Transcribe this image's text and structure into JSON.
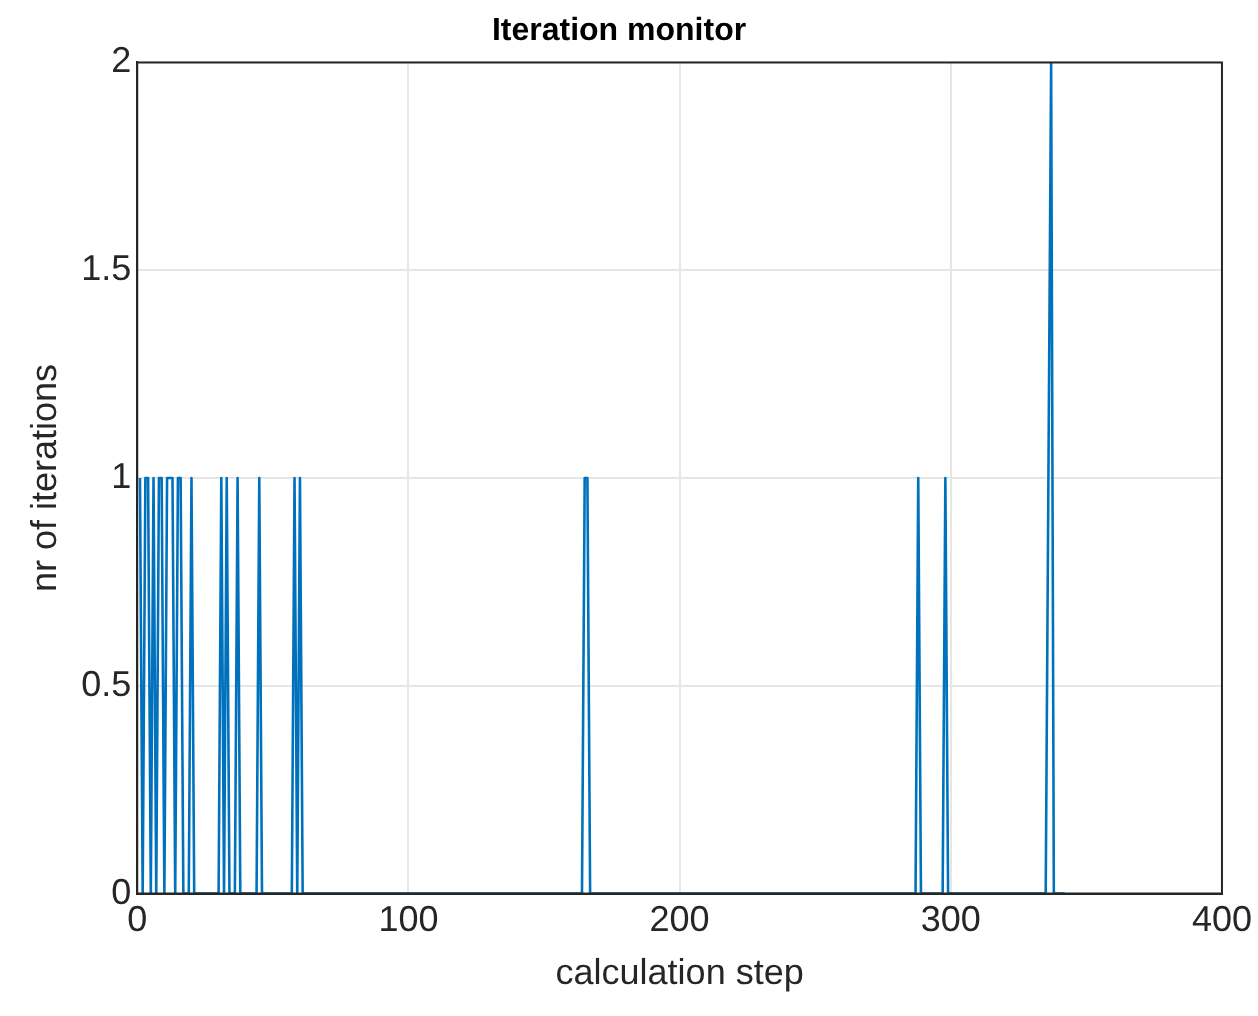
{
  "chart_data": {
    "type": "line",
    "title": "Iteration monitor",
    "xlabel": "calculation step",
    "ylabel": "nr of iterations",
    "series": [
      {
        "color": "#0072bd",
        "x": [
          1,
          2,
          3,
          4,
          5,
          6,
          7,
          8,
          9,
          10,
          11,
          12,
          13,
          14,
          15,
          16,
          17,
          19,
          20,
          21,
          30,
          31,
          32,
          33,
          34,
          36,
          37,
          38,
          44,
          45,
          46,
          57,
          58,
          59,
          60,
          61,
          164,
          165,
          166,
          167,
          287,
          288,
          289,
          297,
          298,
          299,
          335,
          336,
          337,
          338,
          342
        ],
        "values": [
          1,
          0,
          1,
          1,
          0,
          1,
          0,
          1,
          1,
          0,
          1,
          1,
          1,
          0,
          1,
          1,
          0,
          0,
          1,
          0,
          0,
          1,
          0,
          1,
          0,
          0,
          1,
          0,
          0,
          1,
          0,
          0,
          1,
          0,
          1,
          0,
          0,
          1,
          1,
          0,
          0,
          1,
          0,
          0,
          1,
          0,
          0,
          1,
          2,
          0,
          0
        ]
      }
    ],
    "xlim": [
      0,
      400
    ],
    "xticks": [
      0,
      100,
      200,
      300,
      400
    ],
    "ylim": [
      0,
      2
    ],
    "yticks": [
      0,
      0.5,
      1,
      1.5,
      2
    ],
    "grid": true,
    "legend": false,
    "marker": "none",
    "line_style": "solid"
  }
}
